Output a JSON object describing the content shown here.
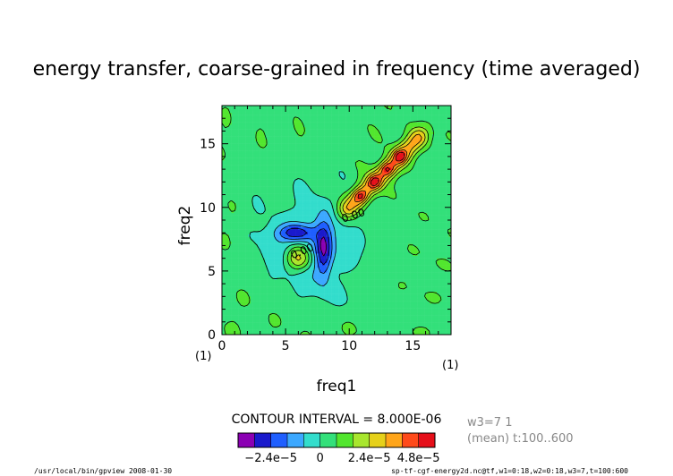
{
  "chart_data": {
    "type": "heatmap",
    "title": "energy transfer, coarse-grained in frequency (time averaged)",
    "xlabel": "freq1",
    "ylabel": "freq2",
    "xlim": [
      0,
      18
    ],
    "ylim": [
      0,
      18
    ],
    "x_ticks": [
      "0",
      "5",
      "10",
      "15"
    ],
    "y_ticks": [
      "0",
      "5",
      "10",
      "15"
    ],
    "x_units": "(1)",
    "y_units": "(1)",
    "contour_interval_label": "CONTOUR INTERVAL = 8.000E-06",
    "contour_label": "0.00",
    "levels": [
      -3.2e-05,
      -2.4e-05,
      -1.6e-05,
      -8e-06,
      0,
      8e-06,
      1.6e-05,
      2.4e-05,
      3.2e-05,
      4e-05,
      4.8e-05
    ],
    "colorbar_colors": [
      "#8b00b3",
      "#1a1acc",
      "#1f5fff",
      "#3ca8ff",
      "#33ddcc",
      "#33e07a",
      "#52e62e",
      "#a8e62e",
      "#e6d11a",
      "#ffa51a",
      "#ff4a1a",
      "#e60f1a"
    ],
    "colorbar_tick_labels": [
      "−2.4e−5",
      "0",
      "2.4e−5",
      "4.8e−5"
    ],
    "grid": false
  },
  "side_info": {
    "line1": "w3=7 1",
    "line2": "(mean) t:100..600"
  },
  "footer": {
    "left": "/usr/local/bin/gpview  2008-01-30",
    "right": "sp-tf-cgf-energy2d.nc@tf,w1=0:18,w2=0:18,w3=7,t=100:600"
  }
}
